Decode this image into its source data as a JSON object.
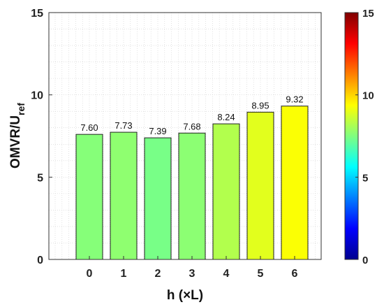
{
  "chart_data": {
    "type": "bar",
    "categories": [
      "0",
      "1",
      "2",
      "3",
      "4",
      "5",
      "6"
    ],
    "values": [
      7.6,
      7.73,
      7.39,
      7.68,
      8.24,
      8.95,
      9.32
    ],
    "data_labels": [
      "7.60",
      "7.73",
      "7.39",
      "7.68",
      "8.24",
      "8.95",
      "9.32"
    ],
    "xlabel": "h (×L)",
    "ylabel_main": "OMVR/U",
    "ylabel_sub": "ref",
    "ylim": [
      0,
      15
    ],
    "yticks": [
      "0",
      "5",
      "10",
      "15"
    ],
    "grid": true,
    "colorbar": {
      "colormap": "jet",
      "range": [
        0,
        15
      ],
      "ticks": [
        "0",
        "5",
        "10",
        "15"
      ]
    }
  }
}
